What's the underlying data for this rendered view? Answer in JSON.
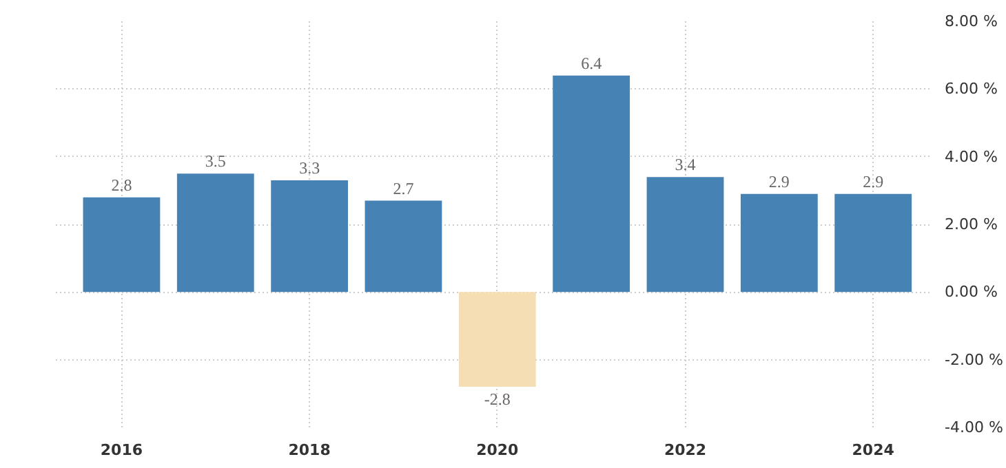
{
  "chart_data": {
    "type": "bar",
    "x": [
      2016,
      2017,
      2018,
      2019,
      2020,
      2021,
      2022,
      2023,
      2024
    ],
    "values": [
      2.8,
      3.5,
      3.3,
      2.7,
      -2.8,
      6.4,
      3.4,
      2.9,
      2.9
    ],
    "colors": [
      "#4682b4",
      "#4682b4",
      "#4682b4",
      "#4682b4",
      "#f5deb3",
      "#4682b4",
      "#4682b4",
      "#4682b4",
      "#4682b4"
    ],
    "xlim": [
      2015.3,
      2024.6
    ],
    "xticks": [
      2016,
      2018,
      2020,
      2022,
      2024
    ],
    "ylim": [
      -4,
      8
    ],
    "yticks": [
      {
        "value": -4,
        "label": "-4.00 %"
      },
      {
        "value": -2,
        "label": "-2.00 %"
      },
      {
        "value": 0,
        "label": "0.00 %"
      },
      {
        "value": 2,
        "label": "2.00 %"
      },
      {
        "value": 4,
        "label": "4.00 %"
      },
      {
        "value": 6,
        "label": "6.00 %"
      },
      {
        "value": 8,
        "label": "8.00 %"
      }
    ],
    "grid": true,
    "data_labels": true
  }
}
